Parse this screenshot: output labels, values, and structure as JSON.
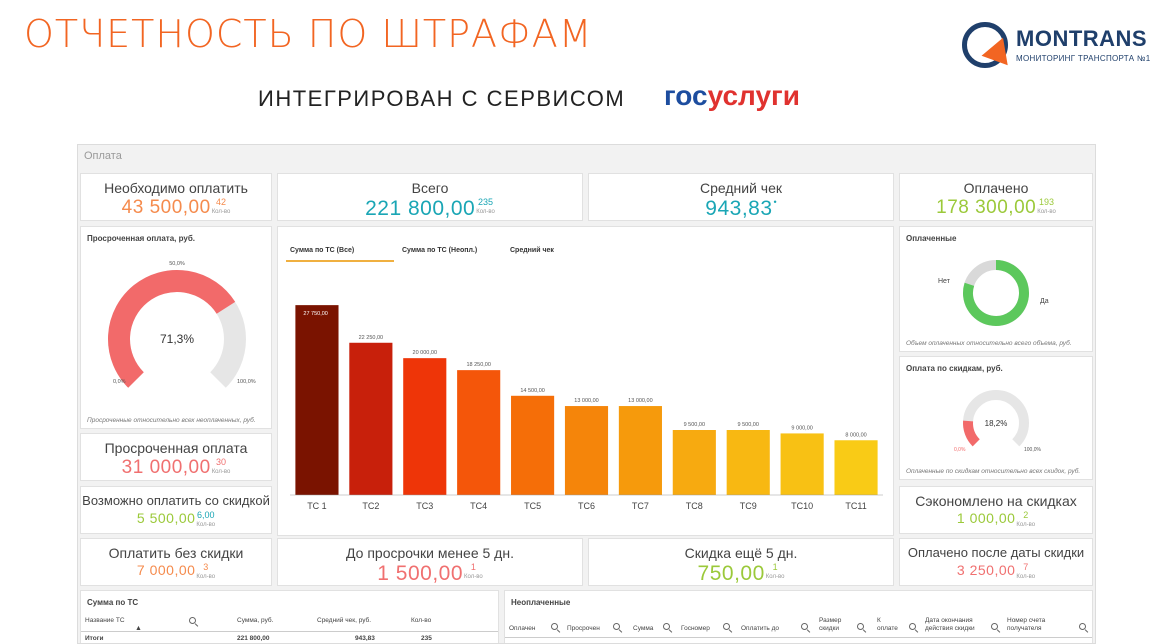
{
  "header": {
    "title": "ОТЧЕТНОСТЬ ПО ШТРАФАМ",
    "subtitle": "ИНТЕГРИРОВАН С СЕРВИСОМ",
    "gos_left": "гос",
    "gos_right": "услуги",
    "logo_name": "MONTRANS",
    "logo_sub": "МОНИТОРИНГ ТРАНСПОРТА №1"
  },
  "dashboard": {
    "title": "Оплата",
    "kpis": {
      "need_pay": {
        "label": "Необходимо оплатить",
        "value": "43 500,00",
        "count": "42",
        "count_label": "Кол-во"
      },
      "total": {
        "label": "Всего",
        "value": "221 800,00",
        "count": "235",
        "count_label": "Кол-во"
      },
      "avg_check": {
        "label": "Средний чек",
        "value": "943,83"
      },
      "paid": {
        "label": "Оплачено",
        "value": "178 300,00",
        "count": "193",
        "count_label": "Кол-во"
      },
      "overdue": {
        "label": "Просроченная оплата",
        "value": "31 000,00",
        "count": "30",
        "count_label": "Кол-во"
      },
      "discount_possible": {
        "label": "Возможно оплатить со скидкой",
        "value": "5 500,00",
        "count": "6,00",
        "count_label": "Кол-во"
      },
      "saved": {
        "label": "Сэкономлено на скидках",
        "value": "1 000,00",
        "count": "2",
        "count_label": "Кол-во"
      },
      "no_discount": {
        "label": "Оплатить без скидки",
        "value": "7 000,00",
        "count": "3",
        "count_label": "Кол-во"
      },
      "before_overdue": {
        "label": "До просрочки менее 5 дн.",
        "value": "1 500,00",
        "count": "1",
        "count_label": "Кол-во"
      },
      "discount_5days": {
        "label": "Скидка ещё 5 дн.",
        "value": "750,00",
        "count": "1",
        "count_label": "Кол-во"
      },
      "paid_after": {
        "label": "Оплачено после даты скидки",
        "value": "3 250,00",
        "count": "7",
        "count_label": "Кол-во"
      }
    },
    "overdue_gauge": {
      "title": "Просроченная оплата, руб.",
      "value": 71.3,
      "value_label": "71,3%",
      "min_label": "0,0%",
      "mid_label": "50,0%",
      "max_label": "100,0%",
      "footnote": "Просроченные относительно всех неоплаченных, руб.",
      "color": "#f26a6a"
    },
    "paid_donut": {
      "title": "Оплаченные",
      "no_label": "Нет",
      "yes_label": "Да",
      "yes_share": 0.8,
      "footnote": "Объем оплаченных относительно всего объема, руб.",
      "color_yes": "#5cc85c",
      "color_no": "#d9d9d9"
    },
    "discount_gauge": {
      "title": "Оплата по скидкам, руб.",
      "value": 18.2,
      "value_label": "18,2%",
      "min_label": "0,0%",
      "max_label": "100,0%",
      "footnote": "Оплаченные по скидкам относительно всех скидок, руб.",
      "color": "#f26a6a"
    },
    "tabs": [
      "Сумма по ТС (Все)",
      "Сумма по ТС (Неопл.)",
      "Средний чек"
    ],
    "sum_table": {
      "title": "Сумма по ТС",
      "headers": [
        "Название ТС",
        "Сумма, руб.",
        "Средний чек, руб.",
        "Кол-во"
      ],
      "total_row": [
        "Итоги",
        "221 800,00",
        "943,83",
        "235"
      ]
    },
    "unpaid_table": {
      "title": "Неоплаченные",
      "headers": [
        "Оплачен",
        "Просрочен",
        "Сумма",
        "Госномер",
        "Оплатить до",
        "Размер скидки",
        "К оплате",
        "Дата окончания действия скидки",
        "Номер счета получателя"
      ]
    }
  },
  "chart_data": {
    "type": "bar",
    "categories": [
      "ТС 1",
      "ТС2",
      "ТС3",
      "ТС4",
      "ТС5",
      "ТС6",
      "ТС7",
      "ТС8",
      "ТС9",
      "ТС10",
      "ТС11"
    ],
    "values": [
      27750,
      22250,
      20000,
      18250,
      14500,
      13000,
      13000,
      9500,
      9500,
      9000,
      8000
    ],
    "value_labels": [
      "27 750,00",
      "22 250,00",
      "20 000,00",
      "18 250,00",
      "14 500,00",
      "13 000,00",
      "13 000,00",
      "9 500,00",
      "9 500,00",
      "9 000,00",
      "8 000,00"
    ],
    "colors": [
      "#7a1300",
      "#c8200b",
      "#ee3508",
      "#f4560a",
      "#f56e08",
      "#f5850a",
      "#f69a0c",
      "#f7aa10",
      "#f8b812",
      "#f8c114",
      "#f9cb16"
    ],
    "ylim": [
      0,
      28500
    ],
    "grid": false,
    "legend": "none"
  }
}
